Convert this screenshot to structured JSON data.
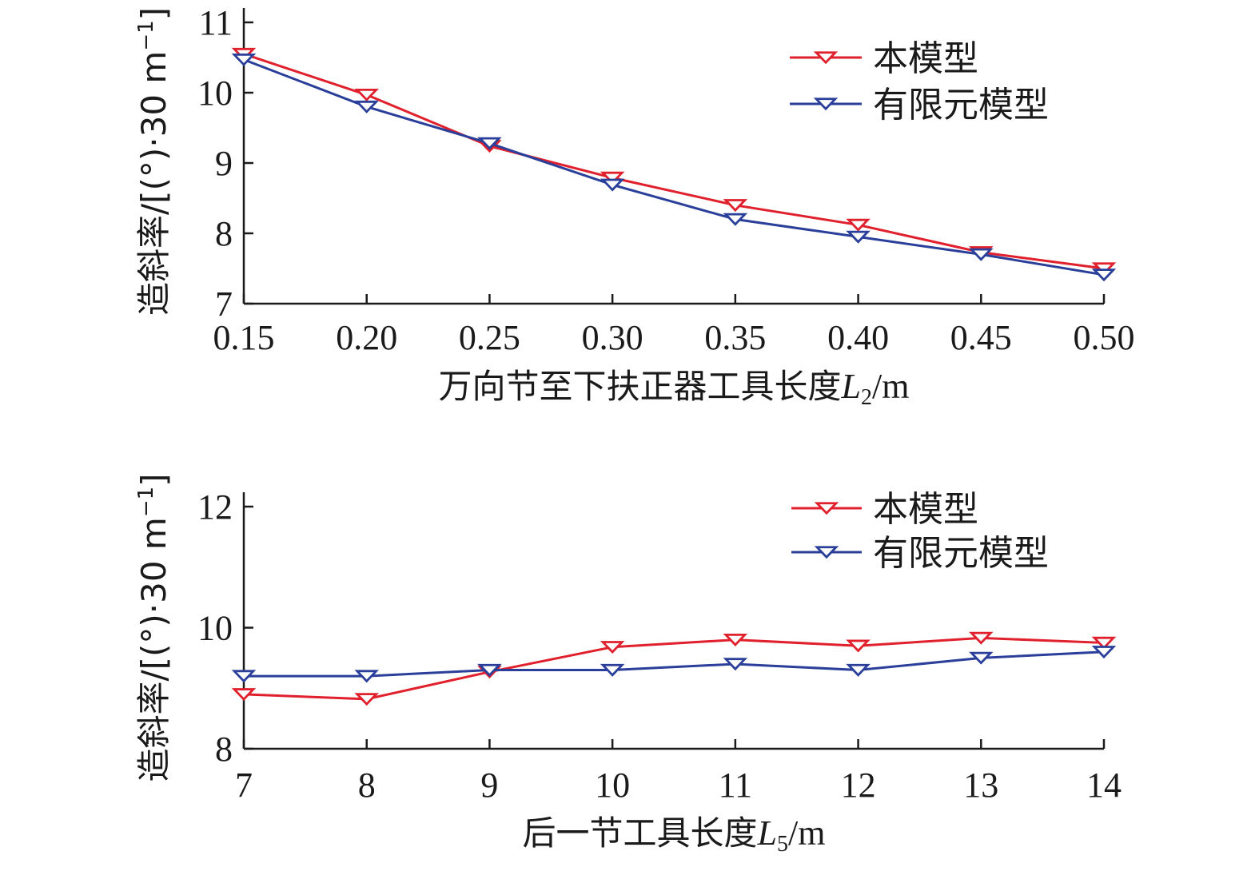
{
  "chart_data": [
    {
      "type": "line",
      "x": [
        0.15,
        0.2,
        0.25,
        0.3,
        0.35,
        0.4,
        0.45,
        0.5
      ],
      "x_tick_labels": [
        "0.15",
        "0.20",
        "0.25",
        "0.30",
        "0.35",
        "0.40",
        "0.45",
        "0.50"
      ],
      "y_ticks": [
        7,
        8,
        9,
        10,
        11
      ],
      "ylim": [
        7,
        11
      ],
      "ylabel": "造斜率/[(°)·30 m−1]",
      "ylabel_parts": {
        "main": "造斜率/[(°)·30 m",
        "sup": "−1",
        "tail": "]"
      },
      "xlabel": "万向节至下扶正器工具长度L2/m",
      "xlabel_parts": {
        "main": "万向节至下扶正器工具长度",
        "var": "L",
        "sub": "2",
        "unit": "/m"
      },
      "legend_position": "top-right",
      "series": [
        {
          "name": "本模型",
          "color": "#e0202c",
          "values": [
            10.55,
            9.97,
            9.24,
            8.79,
            8.4,
            8.12,
            7.73,
            7.5
          ]
        },
        {
          "name": "有限元模型",
          "color": "#2a3f9a",
          "values": [
            10.47,
            9.8,
            9.28,
            8.69,
            8.2,
            7.95,
            7.7,
            7.41
          ]
        }
      ]
    },
    {
      "type": "line",
      "x": [
        7,
        8,
        9,
        10,
        11,
        12,
        13,
        14
      ],
      "x_tick_labels": [
        "7",
        "8",
        "9",
        "10",
        "11",
        "12",
        "13",
        "14"
      ],
      "y_ticks": [
        8,
        10,
        12
      ],
      "y_tick_labels": [
        "8",
        "10",
        "12"
      ],
      "ylim": [
        8,
        12
      ],
      "ylabel": "造斜率/[(°)·30 m−1]",
      "ylabel_parts": {
        "main": "造斜率/[(°)·30 m",
        "sup": "−1",
        "tail": "]"
      },
      "xlabel": "后一节工具长度L5/m",
      "xlabel_parts": {
        "main": "后一节工具长度",
        "var": "L",
        "sub": "5",
        "unit": "/m"
      },
      "legend_position": "top-right",
      "series": [
        {
          "name": "本模型",
          "color": "#e0202c",
          "values": [
            8.9,
            8.82,
            9.27,
            9.68,
            9.8,
            9.7,
            9.83,
            9.75
          ]
        },
        {
          "name": "有限元模型",
          "color": "#2a3f9a",
          "values": [
            9.2,
            9.2,
            9.3,
            9.3,
            9.4,
            9.3,
            9.5,
            9.6
          ]
        }
      ]
    }
  ]
}
